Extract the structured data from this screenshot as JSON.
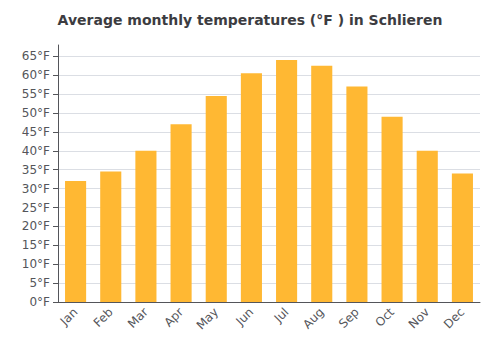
{
  "chart_data": {
    "type": "bar",
    "title": "Average monthly temperatures (°F ) in Schlieren",
    "categories": [
      "Jan",
      "Feb",
      "Mar",
      "Apr",
      "May",
      "Jun",
      "Jul",
      "Aug",
      "Sep",
      "Oct",
      "Nov",
      "Dec"
    ],
    "values": [
      32,
      34.5,
      40,
      47,
      54.5,
      60.5,
      64,
      62.5,
      57,
      49,
      40,
      34
    ],
    "color": "#FFB833",
    "ylim": [
      0,
      68
    ],
    "yticks": [
      {
        "value": 0,
        "label": "0°F"
      },
      {
        "value": 5,
        "label": "5°F"
      },
      {
        "value": 10,
        "label": "10°F"
      },
      {
        "value": 15,
        "label": "15°F"
      },
      {
        "value": 20,
        "label": "20°F"
      },
      {
        "value": 25,
        "label": "25°F"
      },
      {
        "value": 30,
        "label": "30°F"
      },
      {
        "value": 35,
        "label": "35°F"
      },
      {
        "value": 40,
        "label": "40°F"
      },
      {
        "value": 45,
        "label": "45°F"
      },
      {
        "value": 50,
        "label": "50°F"
      },
      {
        "value": 55,
        "label": "55°F"
      },
      {
        "value": 60,
        "label": "60°F"
      },
      {
        "value": 65,
        "label": "65°F"
      }
    ],
    "grid": true
  }
}
